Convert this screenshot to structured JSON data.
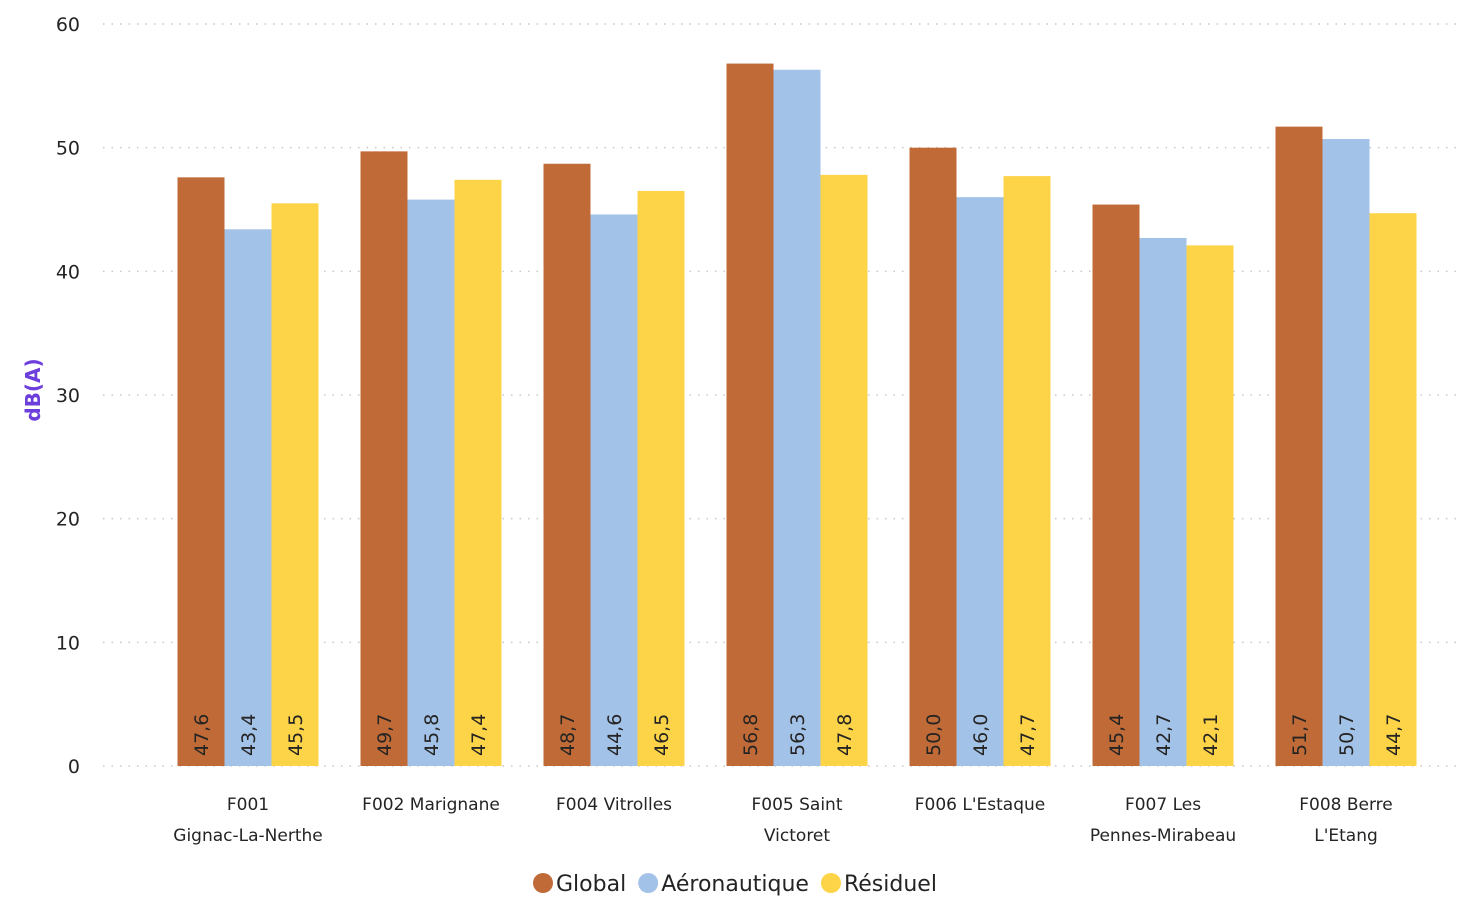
{
  "chart_data": {
    "type": "bar",
    "title": "",
    "xlabel": "",
    "ylabel": "dB(A)",
    "ylim": [
      0,
      60
    ],
    "yticks": [
      0,
      10,
      20,
      30,
      40,
      50,
      60
    ],
    "grid": true,
    "legend_position": "bottom",
    "categories": [
      [
        "F001",
        "Gignac-La-Nerthe"
      ],
      [
        "F002 Marignane"
      ],
      [
        "F004 Vitrolles"
      ],
      [
        "F005 Saint",
        "Victoret"
      ],
      [
        "F006 L'Estaque"
      ],
      [
        "F007 Les",
        "Pennes-Mirabeau"
      ],
      [
        "F008 Berre",
        "L'Etang"
      ]
    ],
    "series": [
      {
        "name": "Global",
        "color": "#C06B37",
        "values": [
          47.6,
          49.7,
          48.7,
          56.8,
          50.0,
          45.4,
          51.7
        ],
        "labels": [
          "47,6",
          "49,7",
          "48,7",
          "56,8",
          "50,0",
          "45,4",
          "51,7"
        ]
      },
      {
        "name": "Aéronautique",
        "color": "#A3C2E8",
        "values": [
          43.4,
          45.8,
          44.6,
          56.3,
          46.0,
          42.7,
          50.7
        ],
        "labels": [
          "43,4",
          "45,8",
          "44,6",
          "56,3",
          "46,0",
          "42,7",
          "50,7"
        ]
      },
      {
        "name": "Résiduel",
        "color": "#FDD448",
        "values": [
          45.5,
          47.4,
          46.5,
          47.8,
          47.7,
          42.1,
          44.7
        ],
        "labels": [
          "45,5",
          "47,4",
          "46,5",
          "47,8",
          "47,7",
          "42,1",
          "44,7"
        ]
      }
    ],
    "ylabel_color": "#6C3EDB",
    "grid_color": "#C8C8C8"
  }
}
